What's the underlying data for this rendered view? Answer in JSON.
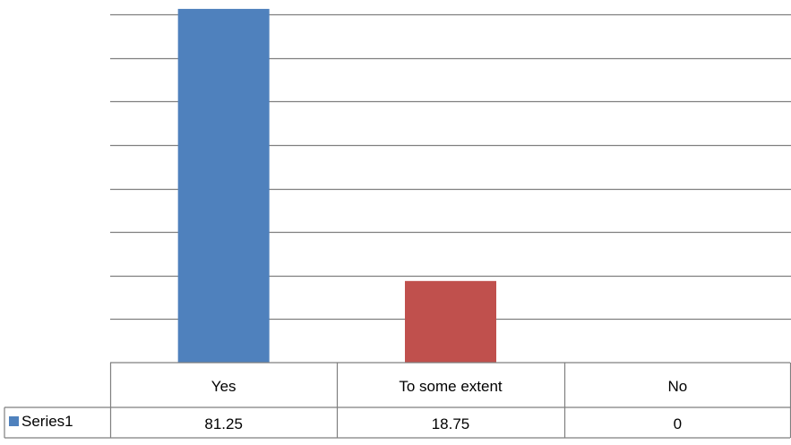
{
  "chart_data": {
    "type": "bar",
    "categories": [
      "Yes",
      "To some extent",
      "No"
    ],
    "series": [
      {
        "name": "Series1",
        "values": [
          81.25,
          18.75,
          0
        ],
        "color": "#4f81bd"
      }
    ],
    "bar_colors": [
      "#4f81bd",
      "#c0504d",
      "#9bbb59"
    ],
    "ylim": [
      0,
      80
    ],
    "gridlines": true,
    "y_tick_labels_shown": false,
    "data_table": true,
    "gridline_color": "#7f7f7f",
    "table_border_color": "#7f7f7f"
  }
}
